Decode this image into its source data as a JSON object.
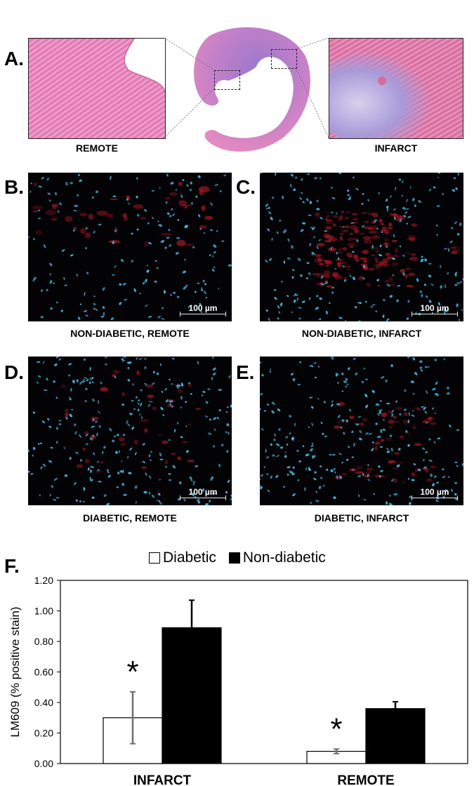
{
  "panels": {
    "A": {
      "letter": "A.",
      "left_caption": "REMOTE",
      "right_caption": "INFARCT"
    },
    "B": {
      "letter": "B.",
      "caption": "NON-DIABETIC, REMOTE",
      "scale": "100 µm"
    },
    "C": {
      "letter": "C.",
      "caption": "NON-DIABETIC, INFARCT",
      "scale": "100 µm"
    },
    "D": {
      "letter": "D.",
      "caption": "DIABETIC, REMOTE",
      "scale": "100 µm"
    },
    "E": {
      "letter": "E.",
      "caption": "DIABETIC, INFARCT",
      "scale": "100 µm"
    },
    "F": {
      "letter": "F."
    }
  },
  "colors": {
    "he_pink": "#e57ab0",
    "he_purple": "#8e6dc7",
    "nuclei": "#3fb8e0",
    "stain_red": "#b01825"
  },
  "chart_data": {
    "type": "bar",
    "title": "",
    "categories": [
      "INFARCT",
      "REMOTE"
    ],
    "series": [
      {
        "name": "Diabetic",
        "color": "#ffffff",
        "values": [
          0.3,
          0.08
        ],
        "errors": [
          0.17,
          0.015
        ]
      },
      {
        "name": "Non-diabetic",
        "color": "#000000",
        "values": [
          0.89,
          0.36
        ],
        "errors": [
          0.18,
          0.045
        ]
      }
    ],
    "significance": [
      "*",
      "*"
    ],
    "ylabel": "LM609 (% positive stain)",
    "xlabel": "",
    "ylim": [
      0,
      1.2
    ],
    "yticks": [
      "0.00",
      "0.20",
      "0.40",
      "0.60",
      "0.80",
      "1.00",
      "1.20"
    ],
    "legend_position": "top",
    "grid": false
  }
}
